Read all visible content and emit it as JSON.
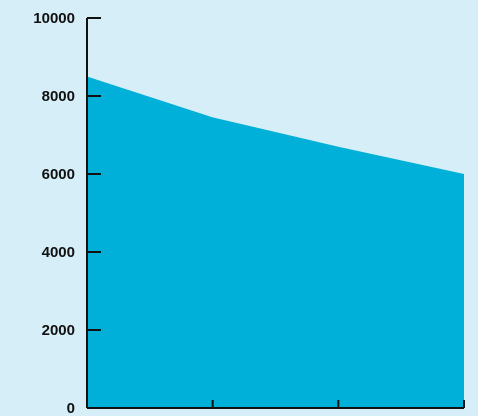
{
  "colors": {
    "background": "#d5eef8",
    "area_fill": "#00b0d8",
    "axis": "#111111"
  },
  "chart_data": {
    "type": "area",
    "title": "",
    "xlabel": "",
    "ylabel": "",
    "x": [
      0,
      1,
      2,
      3
    ],
    "x_tick_labels": [],
    "series": [
      {
        "values": [
          8500,
          7450,
          6700,
          6000
        ]
      }
    ],
    "ylim": [
      0,
      10000
    ],
    "y_ticks": [
      0,
      2000,
      4000,
      6000,
      8000,
      10000
    ],
    "y_tick_labels": [
      "0",
      "2000",
      "4000",
      "6000",
      "8000",
      "10000"
    ],
    "grid": false,
    "legend": "none"
  }
}
